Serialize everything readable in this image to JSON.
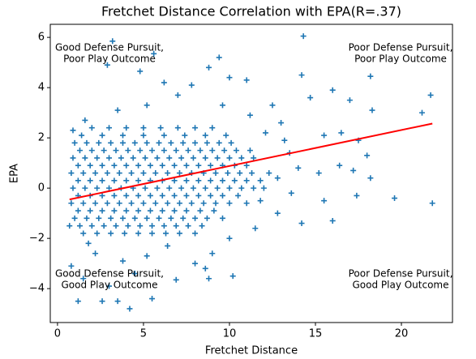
{
  "chart_data": {
    "type": "scatter",
    "title": "Fretchet Distance Correlation with EPA(R=.37)",
    "x_label": "Fretchet Distance",
    "y_label": "EPA",
    "color": "#1f77b4",
    "xlim": [
      -0.42,
      22.97
    ],
    "ylim": [
      -5.35,
      6.52
    ],
    "xticks": [
      0,
      5,
      10,
      15,
      20
    ],
    "yticks": [
      {
        "value": -4,
        "label": "−4"
      },
      {
        "value": -2,
        "label": "−2"
      },
      0,
      2,
      4,
      6
    ],
    "grid": false,
    "x": [
      2,
      3,
      4,
      5,
      6,
      7,
      8,
      9,
      1.4,
      2.6,
      3.8,
      5,
      6.2,
      7.4,
      8.6,
      9.8,
      1,
      1.7,
      2.4,
      3.1,
      3.8,
      4.5,
      5.2,
      5.9,
      6.6,
      7.3,
      8,
      8.7,
      9.4,
      10.1,
      1.3,
      2,
      2.7,
      3.4,
      4.1,
      4.8,
      5.5,
      6.2,
      6.9,
      7.6,
      8.3,
      9,
      9.7,
      10.4,
      11.2,
      0.9,
      1.6,
      2.3,
      3,
      3.7,
      4.4,
      5.1,
      5.8,
      6.5,
      7.2,
      7.9,
      8.6,
      9.3,
      10,
      10.7,
      11.4,
      1.2,
      1.9,
      2.6,
      3.3,
      4,
      4.7,
      5.4,
      6.1,
      6.8,
      7.5,
      8.2,
      8.9,
      9.6,
      10.3,
      11,
      0.8,
      1.5,
      2.2,
      2.9,
      3.6,
      4.3,
      5,
      5.7,
      6.4,
      7.1,
      7.8,
      8.5,
      9.2,
      9.9,
      10.6,
      11.3,
      12.3,
      1.2,
      1.9,
      2.6,
      3.3,
      4,
      4.7,
      5.4,
      6.1,
      6.8,
      7.5,
      8.2,
      8.9,
      9.6,
      10.3,
      11,
      11.8,
      0.9,
      1.6,
      2.3,
      3,
      3.7,
      4.4,
      5.1,
      5.8,
      6.5,
      7.2,
      7.9,
      8.6,
      9.3,
      10,
      10.7,
      11.4,
      12,
      1.2,
      1.9,
      2.6,
      3.3,
      4,
      4.7,
      5.4,
      6.1,
      6.8,
      7.5,
      8.2,
      8.9,
      9.6,
      10.5,
      0.8,
      1.5,
      2.2,
      2.9,
      3.6,
      4.3,
      5,
      5.7,
      6.4,
      7.1,
      7.8,
      8.5,
      9.2,
      10,
      11,
      1.2,
      1.9,
      2.6,
      3.3,
      4,
      4.7,
      5.4,
      6.1,
      6.8,
      7.5,
      8.3,
      9.1,
      1,
      1.7,
      2.4,
      3.1,
      3.8,
      4.5,
      5.2,
      5.9,
      6.6,
      7.3,
      8,
      8.7,
      9.6,
      1.3,
      2,
      2.7,
      3.4,
      4.1,
      4.8,
      5.5,
      6.2,
      6.9,
      7.6,
      8.4,
      1.5,
      2.3,
      3.1,
      3.9,
      4.7,
      5.5,
      6.3,
      7.1,
      8,
      3.2,
      5.6,
      2.9,
      4.8,
      6.2,
      7.8,
      8.8,
      9.4,
      10,
      11,
      14.3,
      14.2,
      14.7,
      16,
      18.2,
      17,
      18.3,
      16.5,
      17.5,
      18,
      21.7,
      21.2,
      15.5,
      13,
      12.5,
      13.5,
      14,
      15.2,
      16.4,
      17.2,
      18.2,
      19.6,
      21.8,
      15.5,
      17.4,
      16,
      14.2,
      12.8,
      11.5,
      10,
      9,
      8,
      8.6,
      8.8,
      10.2,
      6.9,
      5.5,
      4.2,
      3.5,
      2.6,
      1.2,
      0.8,
      1.5,
      3,
      4.5,
      5.2,
      6.4,
      2.2,
      3.8,
      1.8,
      0.7,
      0.9,
      1.6,
      3.5,
      5.2,
      7,
      9.6,
      11.2,
      12.1,
      13.2,
      12.8,
      11.8,
      13.6
    ],
    "values": [
      2.4,
      2.4,
      2.4,
      2.4,
      2.4,
      2.4,
      2.4,
      2.4,
      2.1,
      2.1,
      2.1,
      2.1,
      2.1,
      2.1,
      2.1,
      2.1,
      1.8,
      1.8,
      1.8,
      1.8,
      1.8,
      1.8,
      1.8,
      1.8,
      1.8,
      1.8,
      1.8,
      1.8,
      1.8,
      1.8,
      1.5,
      1.5,
      1.5,
      1.5,
      1.5,
      1.5,
      1.5,
      1.5,
      1.5,
      1.5,
      1.5,
      1.5,
      1.5,
      1.5,
      1.5,
      1.2,
      1.2,
      1.2,
      1.2,
      1.2,
      1.2,
      1.2,
      1.2,
      1.2,
      1.2,
      1.2,
      1.2,
      1.2,
      1.2,
      1.2,
      1.2,
      0.9,
      0.9,
      0.9,
      0.9,
      0.9,
      0.9,
      0.9,
      0.9,
      0.9,
      0.9,
      0.9,
      0.9,
      0.9,
      0.9,
      0.9,
      0.6,
      0.6,
      0.6,
      0.6,
      0.6,
      0.6,
      0.6,
      0.6,
      0.6,
      0.6,
      0.6,
      0.6,
      0.6,
      0.6,
      0.6,
      0.6,
      0.6,
      0.3,
      0.3,
      0.3,
      0.3,
      0.3,
      0.3,
      0.3,
      0.3,
      0.3,
      0.3,
      0.3,
      0.3,
      0.3,
      0.3,
      0.3,
      0.3,
      0,
      0,
      0,
      0,
      0,
      0,
      0,
      0,
      0,
      0,
      0,
      0,
      0,
      0,
      0,
      0,
      0,
      -0.3,
      -0.3,
      -0.3,
      -0.3,
      -0.3,
      -0.3,
      -0.3,
      -0.3,
      -0.3,
      -0.3,
      -0.3,
      -0.3,
      -0.3,
      -0.3,
      -0.6,
      -0.6,
      -0.6,
      -0.6,
      -0.6,
      -0.6,
      -0.6,
      -0.6,
      -0.6,
      -0.6,
      -0.6,
      -0.6,
      -0.6,
      -0.6,
      -0.6,
      -0.9,
      -0.9,
      -0.9,
      -0.9,
      -0.9,
      -0.9,
      -0.9,
      -0.9,
      -0.9,
      -0.9,
      -0.9,
      -0.9,
      -1.2,
      -1.2,
      -1.2,
      -1.2,
      -1.2,
      -1.2,
      -1.2,
      -1.2,
      -1.2,
      -1.2,
      -1.2,
      -1.2,
      -1.2,
      -1.5,
      -1.5,
      -1.5,
      -1.5,
      -1.5,
      -1.5,
      -1.5,
      -1.5,
      -1.5,
      -1.5,
      -1.5,
      -1.8,
      -1.8,
      -1.8,
      -1.8,
      -1.8,
      -1.8,
      -1.8,
      -1.8,
      -1.8,
      5.85,
      5.35,
      4.9,
      4.65,
      4.2,
      4.1,
      4.8,
      5.2,
      4.4,
      4.3,
      6.05,
      4.5,
      3.6,
      3.9,
      4.45,
      3.5,
      3.1,
      2.2,
      1.9,
      1.3,
      3.7,
      3,
      2.1,
      2.6,
      3.3,
      1.4,
      0.8,
      0.6,
      0.9,
      0.7,
      0.4,
      -0.4,
      -0.6,
      -0.5,
      -0.3,
      -1.3,
      -1.4,
      -1,
      -1.6,
      -2,
      -2.6,
      -3,
      -3.2,
      -3.6,
      -3.5,
      -3.65,
      -4.4,
      -4.8,
      -4.5,
      -4.5,
      -4.5,
      -3.1,
      -3.6,
      -3.9,
      -3.4,
      -2.7,
      -2.3,
      -2.6,
      -2.9,
      -2.2,
      -1.5,
      2.3,
      2.7,
      3.1,
      3.3,
      3.7,
      3.3,
      2.9,
      2.2,
      1.9,
      0.4,
      -0.5,
      -0.2
    ],
    "fit": {
      "type": "line",
      "color": "#ff0000",
      "x": [
        0.7,
        21.8
      ],
      "values": [
        -0.45,
        2.57
      ]
    },
    "annotations": [
      {
        "lines": [
          "Good Defense Pursuit,",
          "Poor Play Outcome"
        ]
      },
      {
        "lines": [
          "Poor Defense Pursuit,",
          "Poor Play Outcome"
        ]
      },
      {
        "lines": [
          "Good Defense Pursuit,",
          "Good Play Outcome"
        ]
      },
      {
        "lines": [
          "Poor Defense Pursuit,",
          "Good Play Outcome"
        ]
      }
    ]
  }
}
